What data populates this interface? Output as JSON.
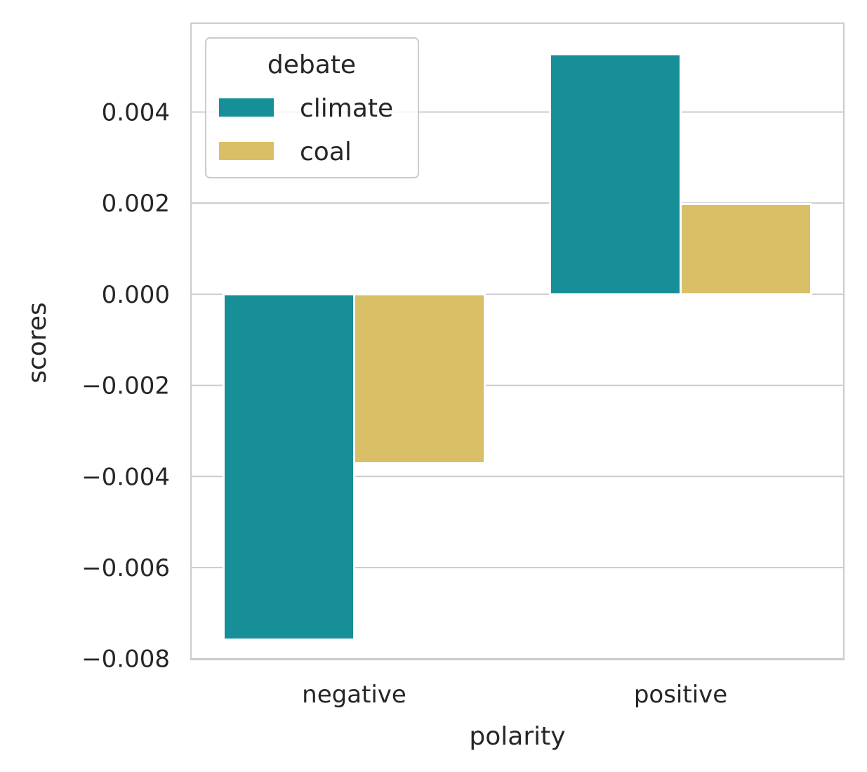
{
  "chart_data": {
    "type": "bar",
    "xlabel": "polarity",
    "ylabel": "scores",
    "categories": [
      "negative",
      "positive"
    ],
    "series": [
      {
        "name": "climate",
        "values": [
          -0.00758,
          0.00527
        ],
        "color": "#178f98"
      },
      {
        "name": "coal",
        "values": [
          -0.00371,
          0.00198
        ],
        "color": "#d9bf66"
      }
    ],
    "ylim": [
      -0.00802,
      0.00595
    ],
    "yticks": [
      0.004,
      0.002,
      0.0,
      -0.002,
      -0.004,
      -0.006,
      -0.008
    ],
    "ytick_labels": [
      "0.004",
      "0.002",
      "0.000",
      "−0.002",
      "−0.004",
      "−0.006",
      "−0.008"
    ],
    "grid": true,
    "legend": {
      "title": "debate",
      "position": "top-left"
    }
  }
}
